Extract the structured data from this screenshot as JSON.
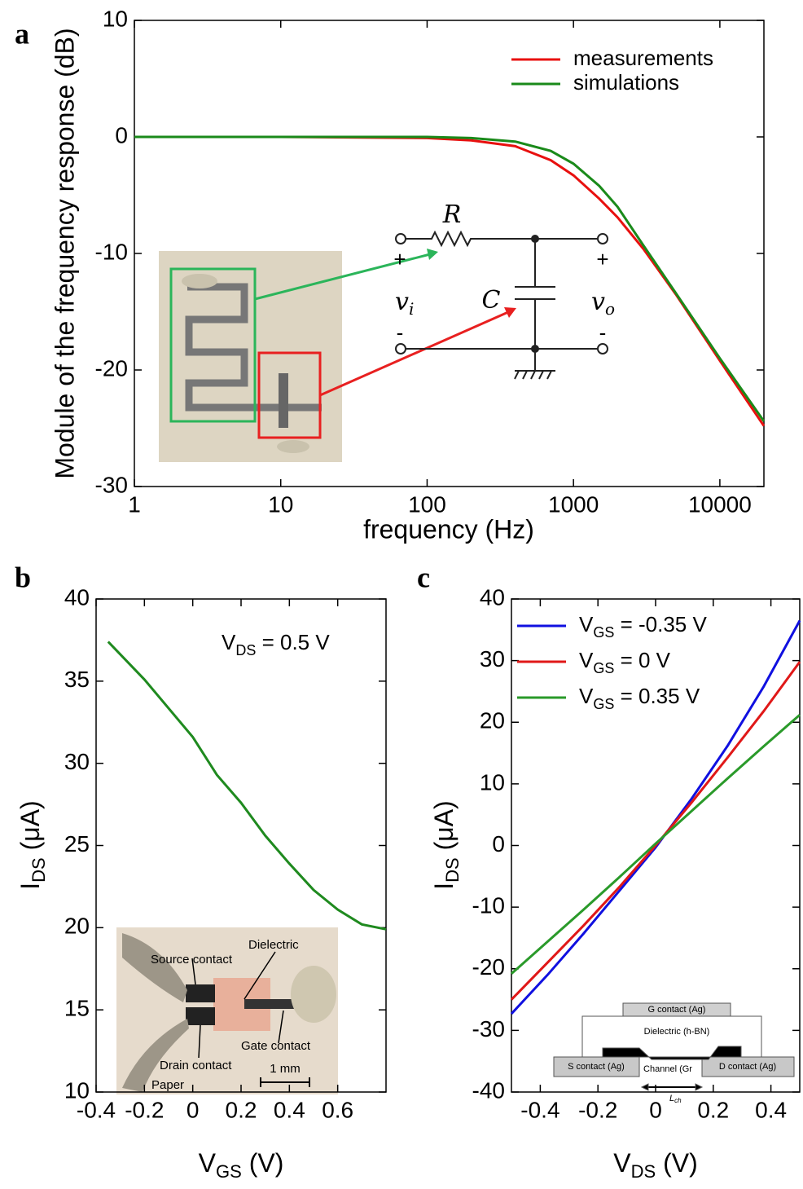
{
  "chart_data": [
    {
      "type": "line",
      "panel": "a",
      "xlabel": "frequency (Hz)",
      "ylabel": "Module of the frequency response (dB)",
      "xscale": "log",
      "x": [
        1,
        10,
        100,
        200,
        400,
        700,
        1000,
        1500,
        2000,
        3000,
        5000,
        10000,
        20000
      ],
      "series": [
        {
          "name": "measurements",
          "color": "#e8100f",
          "values": [
            0,
            0,
            -0.1,
            -0.3,
            -0.8,
            -2.0,
            -3.3,
            -5.3,
            -6.9,
            -9.6,
            -13.5,
            -19.2,
            -24.8
          ]
        },
        {
          "name": "simulations",
          "color": "#1a8a1a",
          "values": [
            0,
            0,
            0,
            -0.1,
            -0.4,
            -1.2,
            -2.3,
            -4.2,
            -6.0,
            -9.3,
            -13.4,
            -19.0,
            -24.4
          ]
        }
      ],
      "xlim": [
        1,
        20000
      ],
      "xticks": [
        1,
        10,
        100,
        1000,
        10000
      ],
      "ylim": [
        -30,
        10
      ],
      "yticks": [
        -30,
        -20,
        -10,
        0,
        10
      ],
      "legend": "upper right",
      "circuit_labels": [
        "R",
        "C",
        [
          "v",
          "i"
        ],
        [
          "v",
          "o"
        ],
        "+",
        "+",
        "-",
        "-"
      ]
    },
    {
      "type": "line",
      "panel": "b",
      "xlabel": [
        "V",
        "GS",
        " (V)"
      ],
      "ylabel": [
        "I",
        "DS",
        " (μA)"
      ],
      "annotation": [
        "V",
        "DS",
        " = 0.5 V"
      ],
      "x": [
        -0.35,
        -0.2,
        0,
        0.1,
        0.2,
        0.3,
        0.4,
        0.5,
        0.6,
        0.7,
        0.8
      ],
      "series": [
        {
          "color": "#1f8a1f",
          "values": [
            37.4,
            35.1,
            31.6,
            29.3,
            27.6,
            25.6,
            23.9,
            22.3,
            21.1,
            20.2,
            19.9
          ]
        }
      ],
      "xlim": [
        -0.4,
        0.8
      ],
      "xticks": [
        -0.4,
        -0.2,
        0,
        0.2,
        0.4,
        0.6
      ],
      "ylim": [
        10,
        40
      ],
      "yticks": [
        10,
        15,
        20,
        25,
        30,
        35,
        40
      ],
      "inset_labels": [
        "Source contact",
        "Dielectric",
        "Gate contact",
        "Drain contact",
        "Paper",
        "1 mm"
      ]
    },
    {
      "type": "line",
      "panel": "c",
      "xlabel": [
        "V",
        "DS",
        " (V)"
      ],
      "ylabel": [
        "I",
        "DS",
        " (μA)"
      ],
      "x": [
        -0.5,
        -0.375,
        -0.25,
        -0.125,
        0,
        0.125,
        0.25,
        0.375,
        0.5
      ],
      "series": [
        {
          "name": [
            "V",
            "GS",
            " = -0.35 V"
          ],
          "color": "#1010e0",
          "values": [
            -27.3,
            -21.0,
            -14.3,
            -7.3,
            -0.3,
            7.6,
            16.2,
            25.8,
            36.5
          ]
        },
        {
          "name": [
            "V",
            "GS",
            " = 0 V"
          ],
          "color": "#e01818",
          "values": [
            -25.0,
            -19.0,
            -13.0,
            -6.7,
            0,
            7.0,
            14.3,
            21.8,
            29.8
          ]
        },
        {
          "name": [
            "V",
            "GS",
            " = 0.35 V"
          ],
          "color": "#2a9a2a",
          "values": [
            -20.8,
            -15.6,
            -10.4,
            -5.1,
            0.3,
            5.6,
            10.9,
            16.1,
            21.2
          ]
        }
      ],
      "xlim": [
        -0.5,
        0.5
      ],
      "xticks": [
        -0.4,
        -0.2,
        0,
        0.2,
        0.4
      ],
      "ylim": [
        -40,
        40
      ],
      "yticks": [
        -40,
        -30,
        -20,
        -10,
        0,
        10,
        20,
        30,
        40
      ],
      "legend": "upper left",
      "inset_labels": [
        "G contact (Ag)",
        "Dielectric (h-BN)",
        "S contact (Ag)",
        "Channel (Gr",
        "D contact (Ag)",
        [
          "L",
          "ch"
        ]
      ]
    }
  ]
}
